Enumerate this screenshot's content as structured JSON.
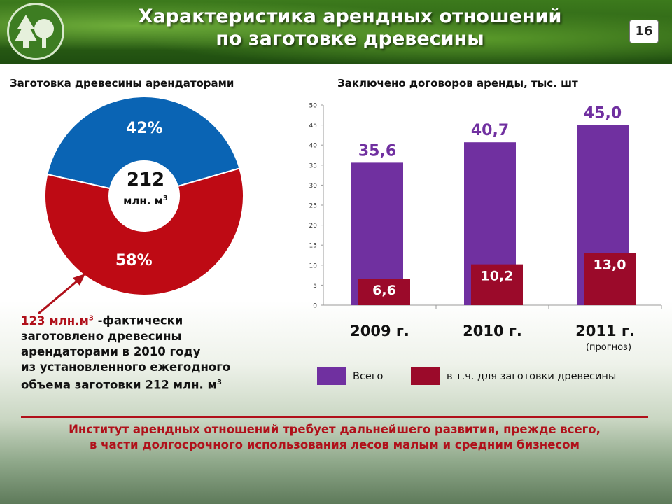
{
  "header": {
    "title_line1": "Характеристика арендных отношений",
    "title_line2": "по заготовке древесины",
    "slide_number": "16"
  },
  "pie": {
    "title": "Заготовка древесины арендаторами",
    "center_value": "212",
    "center_unit": "млн. м",
    "center_unit_sup": "3",
    "slices": [
      {
        "label": "42%",
        "value": 42,
        "color": "#0a64b4"
      },
      {
        "label": "58%",
        "value": 58,
        "color": "#be0a14"
      }
    ]
  },
  "note": {
    "highlight": "123 млн.м",
    "highlight_sup": "3",
    "line1_rest": " -фактически",
    "line2": "заготовлено древесины",
    "line3": "арендаторами в 2010 году",
    "line4": "из установленного ежегодного",
    "line5": "объема заготовки  212 млн. м",
    "line5_sup": "3"
  },
  "chart_data": {
    "type": "bar",
    "title": "Заключено договоров аренды, тыс. шт",
    "categories": [
      "2009 г.",
      "2010 г.",
      "2011 г."
    ],
    "category_notes": [
      "",
      "",
      "(прогноз)"
    ],
    "series": [
      {
        "name": "Всего",
        "values": [
          35.6,
          40.7,
          45.0
        ],
        "labels": [
          "35,6",
          "40,7",
          "45,0"
        ],
        "color": "#7030a0",
        "label_color": "#7030a0"
      },
      {
        "name": "в т.ч. для заготовки древесины",
        "values": [
          6.6,
          10.2,
          13.0
        ],
        "labels": [
          "6,6",
          "10,2",
          "13,0"
        ],
        "color": "#9b0a2a",
        "label_color": "#ffffff"
      }
    ],
    "ylim": [
      0,
      50
    ],
    "yticks": [
      "0",
      "5",
      "10",
      "15",
      "20",
      "25",
      "30",
      "35",
      "40",
      "45",
      "50"
    ],
    "legend_position": "bottom"
  },
  "conclusion": {
    "line1": "Институт арендных отношений требует дальнейшего развития, прежде всего,",
    "line2": "в части долгосрочного использования лесов малым и средним бизнесом"
  }
}
